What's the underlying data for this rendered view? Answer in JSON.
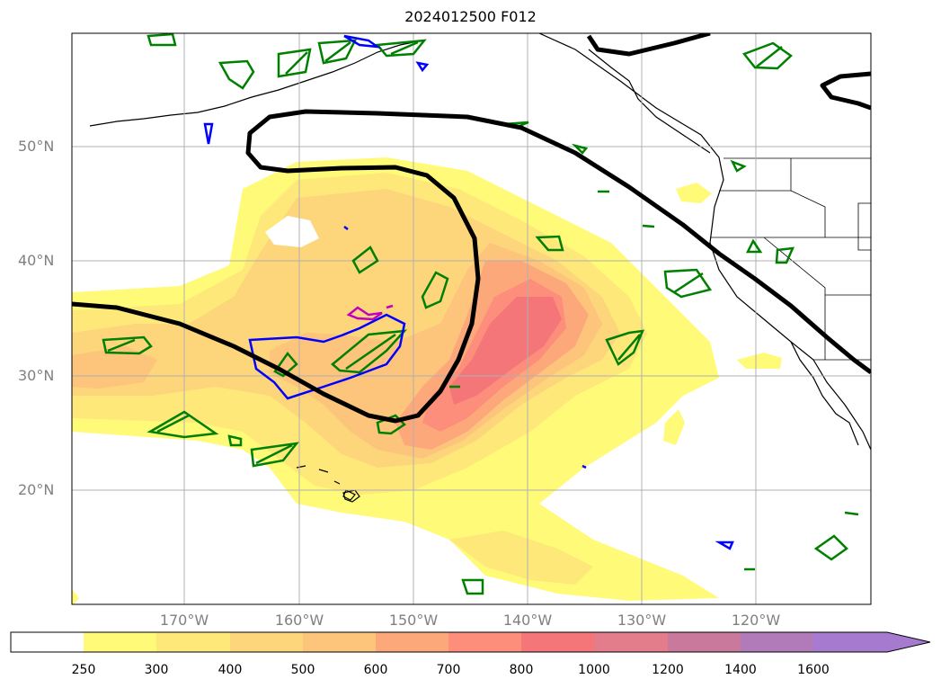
{
  "title": "2024012500 F012",
  "lat_labels": [
    "50°N",
    "40°N",
    "30°N",
    "20°N"
  ],
  "lon_labels": [
    "170°W",
    "160°W",
    "150°W",
    "140°W",
    "130°W",
    "120°W"
  ],
  "colorbar": {
    "ticks": [
      "250",
      "300",
      "400",
      "500",
      "600",
      "700",
      "800",
      "1000",
      "1200",
      "1400",
      "1600"
    ],
    "colors": [
      "#ffffff",
      "#fffa78",
      "#fee87a",
      "#fdd57b",
      "#fdc47b",
      "#fda87b",
      "#fc8e7b",
      "#f47678",
      "#e37c8b",
      "#c97a9c",
      "#b07bb8",
      "#a67bcf"
    ],
    "extend": "max"
  },
  "contour_colors": {
    "black": "#000000",
    "blue": "#0000ff",
    "green": "#008000",
    "magenta": "#c000c0"
  }
}
